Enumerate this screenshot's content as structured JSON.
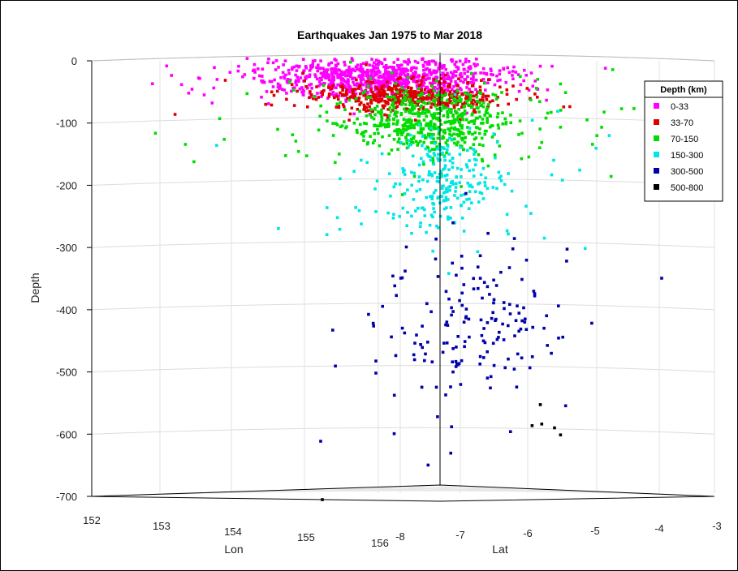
{
  "chart_data": {
    "type": "scatter",
    "title": "Earthquakes Jan 1975 to Mar 2018",
    "zlabel": "Depth",
    "xlabel": "Lon",
    "ylabel": "Lat",
    "zlim": [
      -700,
      0
    ],
    "xlim": [
      152,
      156
    ],
    "ylim": [
      -8,
      -3
    ],
    "z_ticks": [
      "0",
      "-100",
      "-200",
      "-300",
      "-400",
      "-500",
      "-600",
      "-700"
    ],
    "lon_ticks": [
      "152",
      "153",
      "154",
      "155",
      "156"
    ],
    "lat_ticks": [
      "-8",
      "-7",
      "-6",
      "-5",
      "-4",
      "-3"
    ],
    "grid": true,
    "legend": {
      "title": "Depth (km)",
      "position": "right",
      "entries": [
        {
          "label": "0-33",
          "color": "#ff00ff"
        },
        {
          "label": "33-70",
          "color": "#dd0000"
        },
        {
          "label": "70-150",
          "color": "#00dd00"
        },
        {
          "label": "150-300",
          "color": "#00e5e5"
        },
        {
          "label": "300-500",
          "color": "#0000aa"
        },
        {
          "label": "500-800",
          "color": "#000000"
        }
      ]
    },
    "series": [
      {
        "name": "0-33",
        "depth_range": [
          0,
          33
        ],
        "color": "#ff00ff",
        "cluster_center": {
          "lon": 155.2,
          "lat": -6.5,
          "depth": -25
        }
      },
      {
        "name": "33-70",
        "depth_range": [
          33,
          70
        ],
        "color": "#dd0000",
        "cluster_center": {
          "lon": 155.3,
          "lat": -6.5,
          "depth": -55
        }
      },
      {
        "name": "70-150",
        "depth_range": [
          70,
          150
        ],
        "color": "#00dd00",
        "cluster_center": {
          "lon": 155.4,
          "lat": -6.4,
          "depth": -110
        }
      },
      {
        "name": "150-300",
        "depth_range": [
          150,
          300
        ],
        "color": "#00e5e5",
        "cluster_center": {
          "lon": 155.5,
          "lat": -6.3,
          "depth": -200
        }
      },
      {
        "name": "300-500",
        "depth_range": [
          300,
          500
        ],
        "color": "#0000aa",
        "cluster_center": {
          "lon": 155.8,
          "lat": -6.0,
          "depth": -430
        }
      },
      {
        "name": "500-800",
        "depth_range": [
          500,
          800
        ],
        "color": "#000000",
        "cluster_center": {
          "lon": 156.0,
          "lat": -5.5,
          "depth": -530
        }
      }
    ]
  }
}
